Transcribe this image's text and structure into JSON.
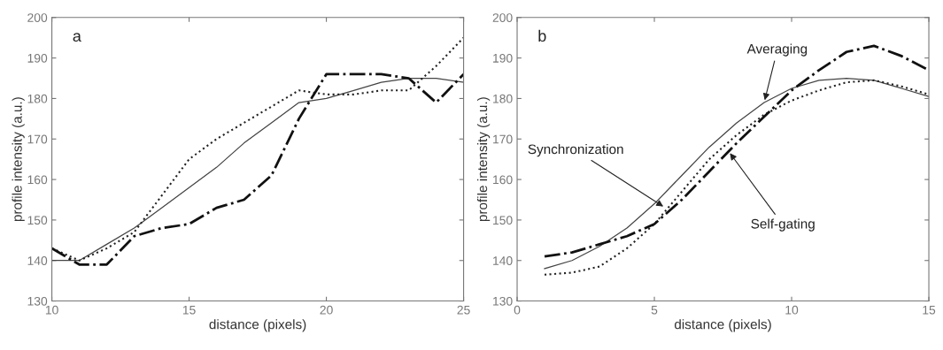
{
  "chart_data": [
    {
      "type": "line",
      "title": "a",
      "xlabel": "distance (pixels)",
      "ylabel": "profile intensity (a.u.)",
      "x": [
        10,
        11,
        12,
        13,
        14,
        15,
        16,
        17,
        18,
        19,
        20,
        21,
        22,
        23,
        24,
        25
      ],
      "xlim": [
        10,
        25
      ],
      "xticks": [
        10,
        15,
        20,
        25
      ],
      "ylim": [
        130,
        200
      ],
      "yticks": [
        130,
        140,
        150,
        160,
        170,
        180,
        190,
        200
      ],
      "grid": false,
      "legend": false,
      "marker": "none",
      "series": [
        {
          "color": "#444444",
          "line_style": "solid",
          "values": [
            140,
            140,
            144,
            148,
            153,
            158,
            163,
            169,
            174,
            179,
            180,
            182,
            184,
            185,
            185,
            184
          ]
        },
        {
          "color": "#222222",
          "line_style": "dotted",
          "values": [
            143,
            140,
            143,
            147,
            156,
            165,
            170,
            174,
            178,
            182,
            181,
            181,
            182,
            182,
            188,
            195
          ]
        },
        {
          "color": "#111111",
          "line_style": "dashdot",
          "values": [
            143,
            139,
            139,
            146,
            148,
            149,
            153,
            155,
            161,
            175,
            186,
            186,
            186,
            185,
            179,
            186
          ]
        }
      ]
    },
    {
      "type": "line",
      "title": "b",
      "xlabel": "distance (pixels)",
      "ylabel": "profile intensity (a.u.)",
      "x": [
        1,
        2,
        3,
        4,
        5,
        6,
        7,
        8,
        9,
        10,
        11,
        12,
        13,
        14,
        15
      ],
      "xlim": [
        0,
        15
      ],
      "xticks": [
        0,
        5,
        10,
        15
      ],
      "ylim": [
        130,
        200
      ],
      "yticks": [
        130,
        140,
        150,
        160,
        170,
        180,
        190,
        200
      ],
      "grid": false,
      "legend": false,
      "marker": "none",
      "series": [
        {
          "color": "#444444",
          "line_style": "solid",
          "values": [
            138,
            140,
            143.5,
            148,
            154,
            161,
            168,
            174,
            179,
            182.5,
            184.5,
            185,
            184.5,
            182.5,
            180.5
          ]
        },
        {
          "color": "#222222",
          "line_style": "dotted",
          "values": [
            136.5,
            137,
            138.5,
            143,
            149,
            157,
            165,
            171,
            176,
            179.5,
            182,
            184,
            184.5,
            183,
            181
          ]
        },
        {
          "color": "#111111",
          "line_style": "dashdot",
          "values": [
            141,
            142,
            144,
            146,
            149,
            155,
            162,
            169,
            175.5,
            182,
            187,
            191.5,
            193,
            190.5,
            187
          ]
        }
      ],
      "annotations": [
        {
          "text": "Averaging",
          "x": 9,
          "y": 179
        },
        {
          "text": "Synchronization",
          "x": 5.4,
          "y": 153
        },
        {
          "text": "Self-gating",
          "x": 7.7,
          "y": 167
        }
      ]
    }
  ]
}
